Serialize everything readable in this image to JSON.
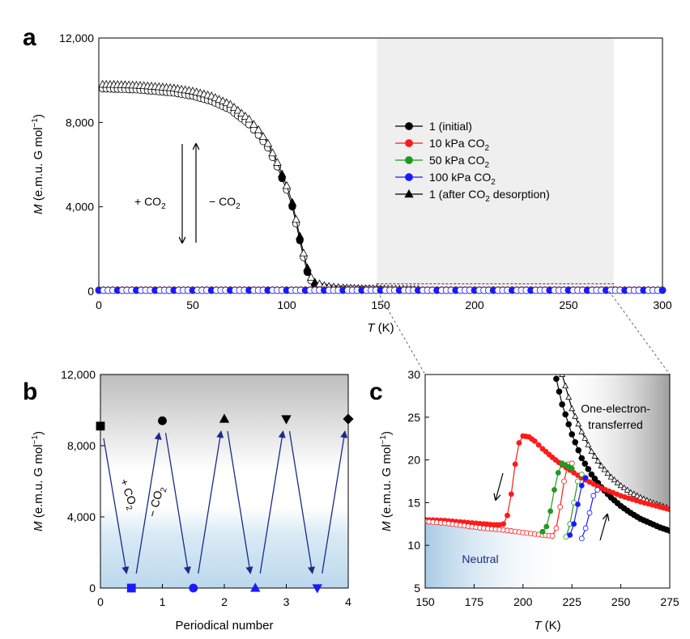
{
  "panels": [
    {
      "letter": "a"
    },
    {
      "letter": "b"
    },
    {
      "letter": "c"
    }
  ],
  "colors": {
    "black": "#000000",
    "red": "#ff1a1a",
    "green": "#1f9a1f",
    "blue": "#1a1aff",
    "arrow": "#1a2a8a",
    "shade": "#efefef"
  },
  "chart_data": [
    {
      "panel": "a",
      "type": "line",
      "xlabel_italic": "T",
      "xlabel_unit": " (K)",
      "ylabel_italic": "M",
      "ylabel_unit": " (e.m.u. G mol",
      "ylabel_exp": "−1",
      "ylabel_close": ")",
      "xlim": [
        0,
        300
      ],
      "ylim": [
        0,
        12000
      ],
      "xticks": [
        "0",
        "50",
        "100",
        "150",
        "200",
        "250",
        "300"
      ],
      "xtick_values": [
        0,
        50,
        100,
        150,
        200,
        250,
        300
      ],
      "yticks": [
        "0",
        "4,000",
        "8,000",
        "12,000"
      ],
      "ytick_values": [
        0,
        4000,
        8000,
        12000
      ],
      "shaded_region_x": [
        148,
        274
      ],
      "zoom_box": {
        "x": [
          148,
          274
        ],
        "y": [
          0,
          350
        ]
      },
      "annotations": {
        "plus_co2": "+ CO",
        "plus_co2_sub": "2",
        "minus_co2": "− CO",
        "minus_co2_sub": "2"
      },
      "legend": [
        {
          "text": "1 (initial)",
          "sub": "",
          "tail": "",
          "color": "#000000",
          "marker": "circle"
        },
        {
          "text": "10 kPa CO",
          "sub": "2",
          "tail": "",
          "color": "#ff1a1a",
          "marker": "circle"
        },
        {
          "text": "50 kPa CO",
          "sub": "2",
          "tail": "",
          "color": "#1f9a1f",
          "marker": "circle"
        },
        {
          "text": "100 kPa CO",
          "sub": "2",
          "tail": "",
          "color": "#1a1aff",
          "marker": "circle"
        },
        {
          "text": "1 (after CO",
          "sub": "2",
          "tail": " desorption)",
          "color": "#000000",
          "marker": "triangle"
        }
      ],
      "series": [
        {
          "name": "1 (initial)",
          "color": "#000000",
          "x": [
            2,
            10,
            20,
            30,
            40,
            50,
            60,
            70,
            80,
            85,
            90,
            95,
            100,
            103,
            105,
            107,
            109,
            111,
            113,
            115,
            120,
            125,
            130,
            140,
            150
          ],
          "y": [
            9600,
            9580,
            9550,
            9480,
            9400,
            9250,
            9000,
            8600,
            7900,
            7400,
            6800,
            5900,
            4800,
            4000,
            3200,
            2400,
            1600,
            900,
            500,
            300,
            200,
            140,
            110,
            90,
            80
          ]
        },
        {
          "name": "1 (after CO2 desorption)",
          "color": "#000000",
          "x": [
            2,
            10,
            20,
            30,
            40,
            50,
            60,
            70,
            80,
            85,
            90,
            95,
            100,
            103,
            105,
            107,
            109,
            111,
            113,
            115,
            120,
            125,
            130,
            140,
            150,
            160,
            170
          ],
          "y": [
            9800,
            9790,
            9760,
            9700,
            9620,
            9480,
            9250,
            8850,
            8150,
            7650,
            7000,
            6100,
            5000,
            4200,
            3400,
            2600,
            1800,
            1100,
            650,
            420,
            260,
            190,
            150,
            120,
            100,
            90,
            80
          ]
        },
        {
          "name": "10 kPa CO2",
          "color": "#ff1a1a",
          "x": [
            0,
            300
          ],
          "y": [
            60,
            60
          ]
        },
        {
          "name": "50 kPa CO2",
          "color": "#1f9a1f",
          "x": [
            0,
            300
          ],
          "y": [
            50,
            50
          ]
        },
        {
          "name": "100 kPa CO2",
          "color": "#1a1aff",
          "x": [
            0,
            300
          ],
          "y": [
            40,
            40
          ]
        }
      ]
    },
    {
      "panel": "b",
      "type": "scatter",
      "xlabel": "Periodical number",
      "ylabel_italic": "M",
      "ylabel_unit": " (e.m.u. G mol",
      "ylabel_exp": "−1",
      "ylabel_close": ")",
      "xlim": [
        0,
        4
      ],
      "ylim": [
        0,
        12000
      ],
      "xticks": [
        "0",
        "1",
        "2",
        "3",
        "4"
      ],
      "xtick_values": [
        0,
        1,
        2,
        3,
        4
      ],
      "yticks": [
        "0",
        "4,000",
        "8,000",
        "12,000"
      ],
      "ytick_values": [
        0,
        4000,
        8000,
        12000
      ],
      "annotations": {
        "plus_co2": "+ CO",
        "plus_co2_sub": "2",
        "minus_co2": "− CO",
        "minus_co2_sub": "2"
      },
      "high_points": [
        {
          "x": 0,
          "y": 9100,
          "marker": "square"
        },
        {
          "x": 1,
          "y": 9400,
          "marker": "circle"
        },
        {
          "x": 2,
          "y": 9500,
          "marker": "triangle"
        },
        {
          "x": 3,
          "y": 9500,
          "marker": "triangle-down"
        },
        {
          "x": 4,
          "y": 9500,
          "marker": "diamond"
        }
      ],
      "low_points": [
        {
          "x": 0.5,
          "y": 0,
          "marker": "square"
        },
        {
          "x": 1.5,
          "y": 0,
          "marker": "circle"
        },
        {
          "x": 2.5,
          "y": 0,
          "marker": "triangle"
        },
        {
          "x": 3.5,
          "y": 0,
          "marker": "triangle-down"
        }
      ]
    },
    {
      "panel": "c",
      "type": "line",
      "xlabel_italic": "T",
      "xlabel_unit": " (K)",
      "ylabel_italic": "M",
      "ylabel_unit": " (e.m.u. G mol",
      "ylabel_exp": "−1",
      "ylabel_close": ")",
      "xlim": [
        150,
        275
      ],
      "ylim": [
        5,
        30
      ],
      "xticks": [
        "150",
        "175",
        "200",
        "225",
        "250",
        "275"
      ],
      "xtick_values": [
        150,
        175,
        200,
        225,
        250,
        275
      ],
      "yticks": [
        "5",
        "10",
        "15",
        "20",
        "25",
        "30"
      ],
      "ytick_values": [
        5,
        10,
        15,
        20,
        25,
        30
      ],
      "region_labels": {
        "one_electron_1": "One-electron-",
        "one_electron_2": "transferred",
        "neutral": "Neutral"
      },
      "series": [
        {
          "name": "1 (initial)",
          "color": "#000000",
          "x": [
            217,
            220,
            225,
            230,
            235,
            240,
            245,
            250,
            255,
            260,
            265,
            270,
            275
          ],
          "y": [
            29.5,
            26.5,
            23.0,
            20.2,
            18.3,
            16.8,
            15.6,
            14.6,
            13.8,
            13.1,
            12.6,
            12.1,
            11.7
          ]
        },
        {
          "name": "1 (after CO2 desorption)",
          "color": "#000000",
          "x": [
            220,
            225,
            230,
            235,
            240,
            245,
            250,
            255,
            260,
            265,
            270,
            275
          ],
          "y": [
            30.0,
            26.0,
            23.3,
            21.0,
            19.3,
            18.0,
            17.0,
            16.2,
            15.6,
            15.1,
            14.7,
            14.3
          ]
        },
        {
          "name": "10 kPa CO2 (cooling)",
          "color": "#ff1a1a",
          "x": [
            150,
            160,
            170,
            180,
            185,
            188,
            190,
            192,
            194,
            196,
            198,
            200,
            203,
            206,
            210,
            215,
            220,
            230,
            240,
            250,
            260,
            270,
            275
          ],
          "y": [
            13.0,
            12.9,
            12.7,
            12.5,
            12.4,
            12.4,
            12.5,
            13.5,
            16.0,
            19.5,
            22.0,
            22.8,
            22.7,
            22.2,
            21.3,
            20.3,
            19.4,
            17.9,
            16.7,
            15.8,
            15.1,
            14.5,
            14.2
          ]
        },
        {
          "name": "10 kPa CO2 (heating)",
          "color": "#ff1a1a",
          "x": [
            150,
            160,
            170,
            180,
            190,
            200,
            210,
            215,
            217,
            219,
            221,
            223,
            225
          ],
          "y": [
            12.8,
            12.6,
            12.3,
            12.0,
            11.8,
            11.5,
            11.2,
            11.1,
            12.0,
            14.5,
            17.5,
            19.5,
            19.6
          ]
        },
        {
          "name": "50 kPa CO2 (cooling)",
          "color": "#1f9a1f",
          "x": [
            210,
            212,
            214,
            216,
            218,
            220,
            225
          ],
          "y": [
            11.6,
            12.2,
            14.0,
            16.5,
            18.5,
            19.6,
            19.0
          ]
        },
        {
          "name": "50 kPa CO2 (heating)",
          "color": "#1f9a1f",
          "x": [
            222,
            224,
            226,
            228,
            230
          ],
          "y": [
            11.0,
            12.5,
            15.0,
            17.5,
            18.3
          ]
        },
        {
          "name": "100 kPa CO2 (cooling)",
          "color": "#1a1aff",
          "x": [
            224,
            226,
            228,
            230,
            232
          ],
          "y": [
            11.2,
            12.5,
            14.8,
            17.0,
            17.9
          ]
        },
        {
          "name": "100 kPa CO2 (heating)",
          "color": "#1a1aff",
          "x": [
            230,
            232,
            234,
            236,
            238
          ],
          "y": [
            10.8,
            12.0,
            13.8,
            15.8,
            16.5
          ]
        }
      ]
    }
  ]
}
